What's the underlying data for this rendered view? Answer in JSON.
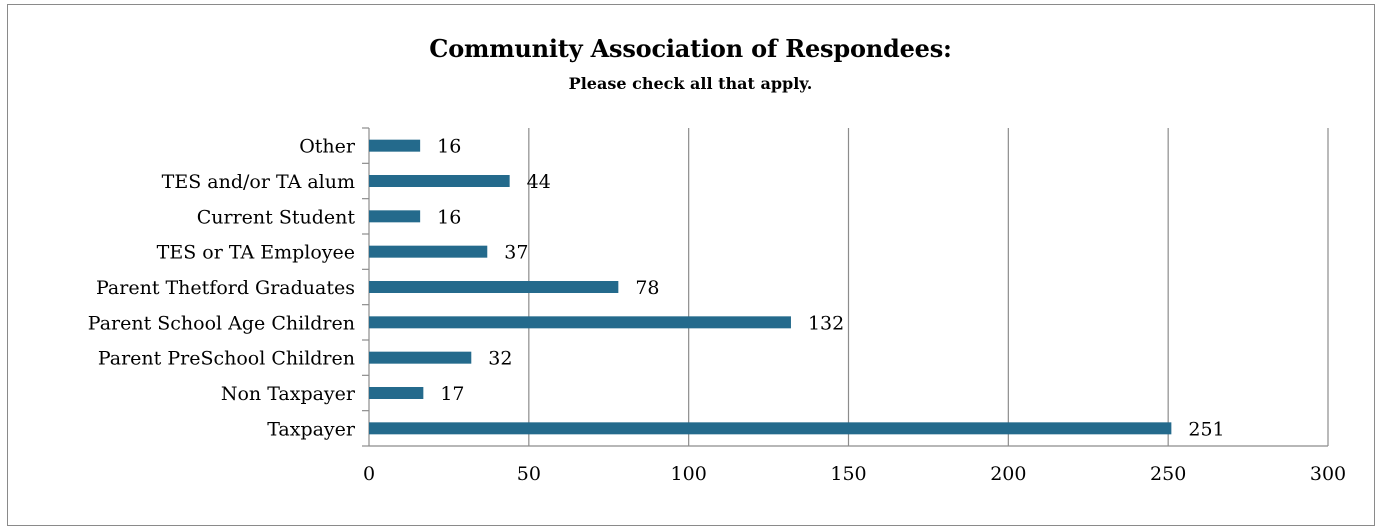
{
  "chart_data": {
    "type": "bar",
    "orientation": "horizontal",
    "title": "Community Association of Respondees:",
    "subtitle": "Please check all that apply.",
    "categories": [
      "Taxpayer",
      "Non Taxpayer",
      "Parent PreSchool Children",
      "Parent School Age Children",
      "Parent Thetford Graduates",
      "TES or TA Employee",
      "Current Student",
      "TES and/or TA alum",
      "Other"
    ],
    "values": [
      251,
      17,
      32,
      132,
      78,
      37,
      16,
      44,
      16
    ],
    "xlim": [
      0,
      300
    ],
    "xticks": [
      0,
      50,
      100,
      150,
      200,
      250,
      300
    ],
    "grid": "vertical",
    "legend": "none",
    "bar_color": "#246a8c",
    "grid_color": "#8c8c8c",
    "data_labels": true
  }
}
